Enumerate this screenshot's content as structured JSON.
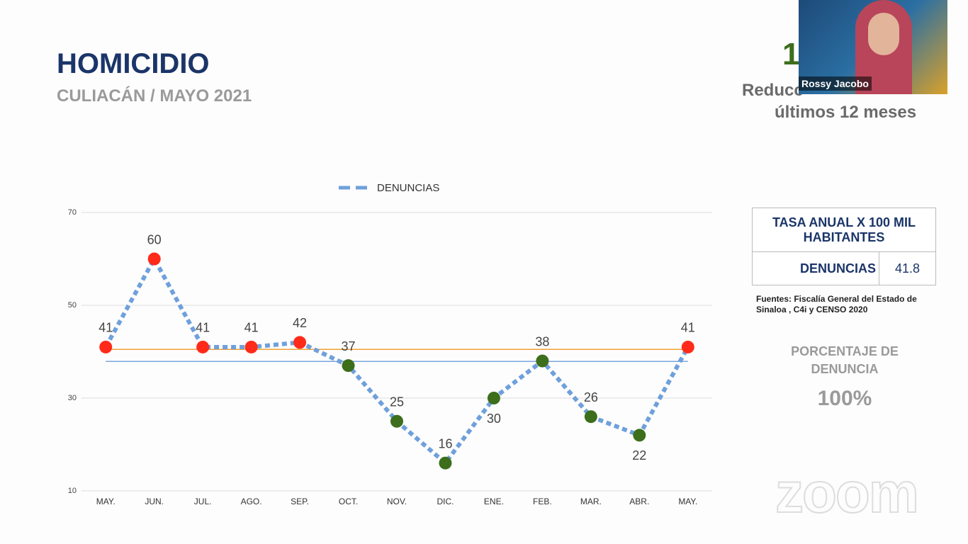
{
  "header": {
    "title": "HOMICIDIO",
    "subtitle": "CULIACÁN / MAYO 2021"
  },
  "summary": {
    "number": "1",
    "line1": "Reducc",
    "line2": "últimos 12 meses"
  },
  "video": {
    "name": "Rossy Jacobo"
  },
  "table": {
    "header": "TASA ANUAL X 100 MIL HABITANTES",
    "row": [
      "DENUNCIAS",
      "41.8"
    ]
  },
  "source": "Fuentes: Fiscalía General del Estado de Sinaloa , C4i y CENSO  2020",
  "percentage": {
    "label": "PORCENTAJE DE DENUNCIA",
    "value": "100%"
  },
  "watermark": "zoom",
  "chart_data": {
    "type": "line",
    "categories": [
      "MAY.",
      "JUN.",
      "JUL.",
      "AGO.",
      "SEP.",
      "OCT.",
      "NOV.",
      "DIC.",
      "ENE.",
      "FEB.",
      "MAR.",
      "ABR.",
      "MAY."
    ],
    "series": [
      {
        "name": "DENUNCIAS",
        "color": "#6fa0dc",
        "values": [
          41,
          60,
          41,
          41,
          42,
          37,
          25,
          16,
          30,
          38,
          26,
          22,
          41
        ],
        "marker_colors": [
          "#ff2a1a",
          "#ff2a1a",
          "#ff2a1a",
          "#ff2a1a",
          "#ff2a1a",
          "#3d6e1c",
          "#3d6e1c",
          "#3d6e1c",
          "#3d6e1c",
          "#3d6e1c",
          "#3d6e1c",
          "#3d6e1c",
          "#ff2a1a"
        ]
      }
    ],
    "reference_lines": [
      {
        "value": 40.5,
        "color": "#f0a035"
      },
      {
        "value": 37.9,
        "color": "#7aa6dc"
      }
    ],
    "ylim": [
      10,
      70
    ],
    "yticks": [
      10,
      30,
      50,
      70
    ],
    "grid": true,
    "legend": "top"
  }
}
